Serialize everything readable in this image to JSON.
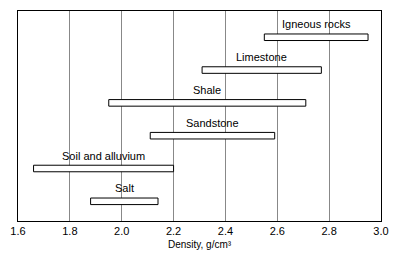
{
  "chart_data": {
    "type": "bar",
    "orientation": "horizontal",
    "categories": [
      "Igneous rocks",
      "Limestone",
      "Shale",
      "Sandstone",
      "Soil and alluvium",
      "Salt"
    ],
    "starts": [
      2.55,
      2.31,
      1.95,
      2.11,
      1.66,
      1.88
    ],
    "ends": [
      2.95,
      2.77,
      2.71,
      2.59,
      2.2,
      2.14
    ],
    "color": "#ffffff",
    "xlabel": "Density, g/cm³",
    "xlim": [
      1.6,
      3.0
    ],
    "xticks": [
      1.6,
      1.8,
      {
        "value": 2,
        "label": "2.0"
      },
      2.2,
      2.4,
      2.6,
      2.8,
      {
        "value": 3,
        "label": "3.0"
      }
    ],
    "grid": true,
    "tick_labels": "x"
  }
}
